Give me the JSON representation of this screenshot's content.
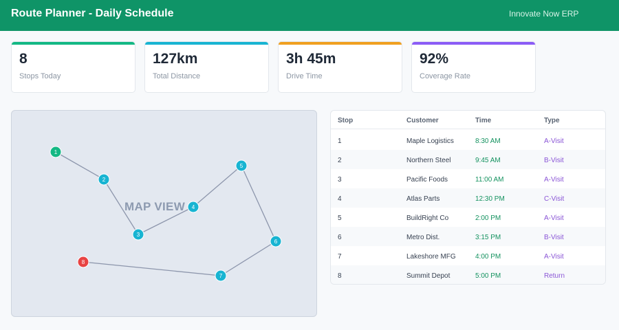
{
  "header": {
    "title": "Route Planner - Daily Schedule",
    "brand": "Innovate Now ERP"
  },
  "stats": [
    {
      "value": "8",
      "label": "Stops Today",
      "color": "#14b884"
    },
    {
      "value": "127km",
      "label": "Total Distance",
      "color": "#18b4d2"
    },
    {
      "value": "3h 45m",
      "label": "Drive Time",
      "color": "#f0a020"
    },
    {
      "value": "92%",
      "label": "Coverage Rate",
      "color": "#8b5cf6"
    }
  ],
  "map": {
    "label": "MAP VIEW",
    "markers": [
      {
        "num": "1",
        "color": "#14b884"
      },
      {
        "num": "2",
        "color": "#18b4d2"
      },
      {
        "num": "3",
        "color": "#18b4d2"
      },
      {
        "num": "4",
        "color": "#18b4d2"
      },
      {
        "num": "5",
        "color": "#18b4d2"
      },
      {
        "num": "6",
        "color": "#18b4d2"
      },
      {
        "num": "7",
        "color": "#18b4d2"
      },
      {
        "num": "8",
        "color": "#e84343"
      }
    ]
  },
  "table": {
    "columns": [
      "Stop",
      "Customer",
      "Time",
      "Type"
    ],
    "rows": [
      {
        "stop": "1",
        "customer": "Maple Logistics",
        "time": "8:30 AM",
        "type": "A-Visit"
      },
      {
        "stop": "2",
        "customer": "Northern Steel",
        "time": "9:45 AM",
        "type": "B-Visit"
      },
      {
        "stop": "3",
        "customer": "Pacific Foods",
        "time": "11:00 AM",
        "type": "A-Visit"
      },
      {
        "stop": "4",
        "customer": "Atlas Parts",
        "time": "12:30 PM",
        "type": "C-Visit"
      },
      {
        "stop": "5",
        "customer": "BuildRight Co",
        "time": "2:00 PM",
        "type": "A-Visit"
      },
      {
        "stop": "6",
        "customer": "Metro Dist.",
        "time": "3:15 PM",
        "type": "B-Visit"
      },
      {
        "stop": "7",
        "customer": "Lakeshore MFG",
        "time": "4:00 PM",
        "type": "A-Visit"
      },
      {
        "stop": "8",
        "customer": "Summit Depot",
        "time": "5:00 PM",
        "type": "Return"
      }
    ]
  }
}
